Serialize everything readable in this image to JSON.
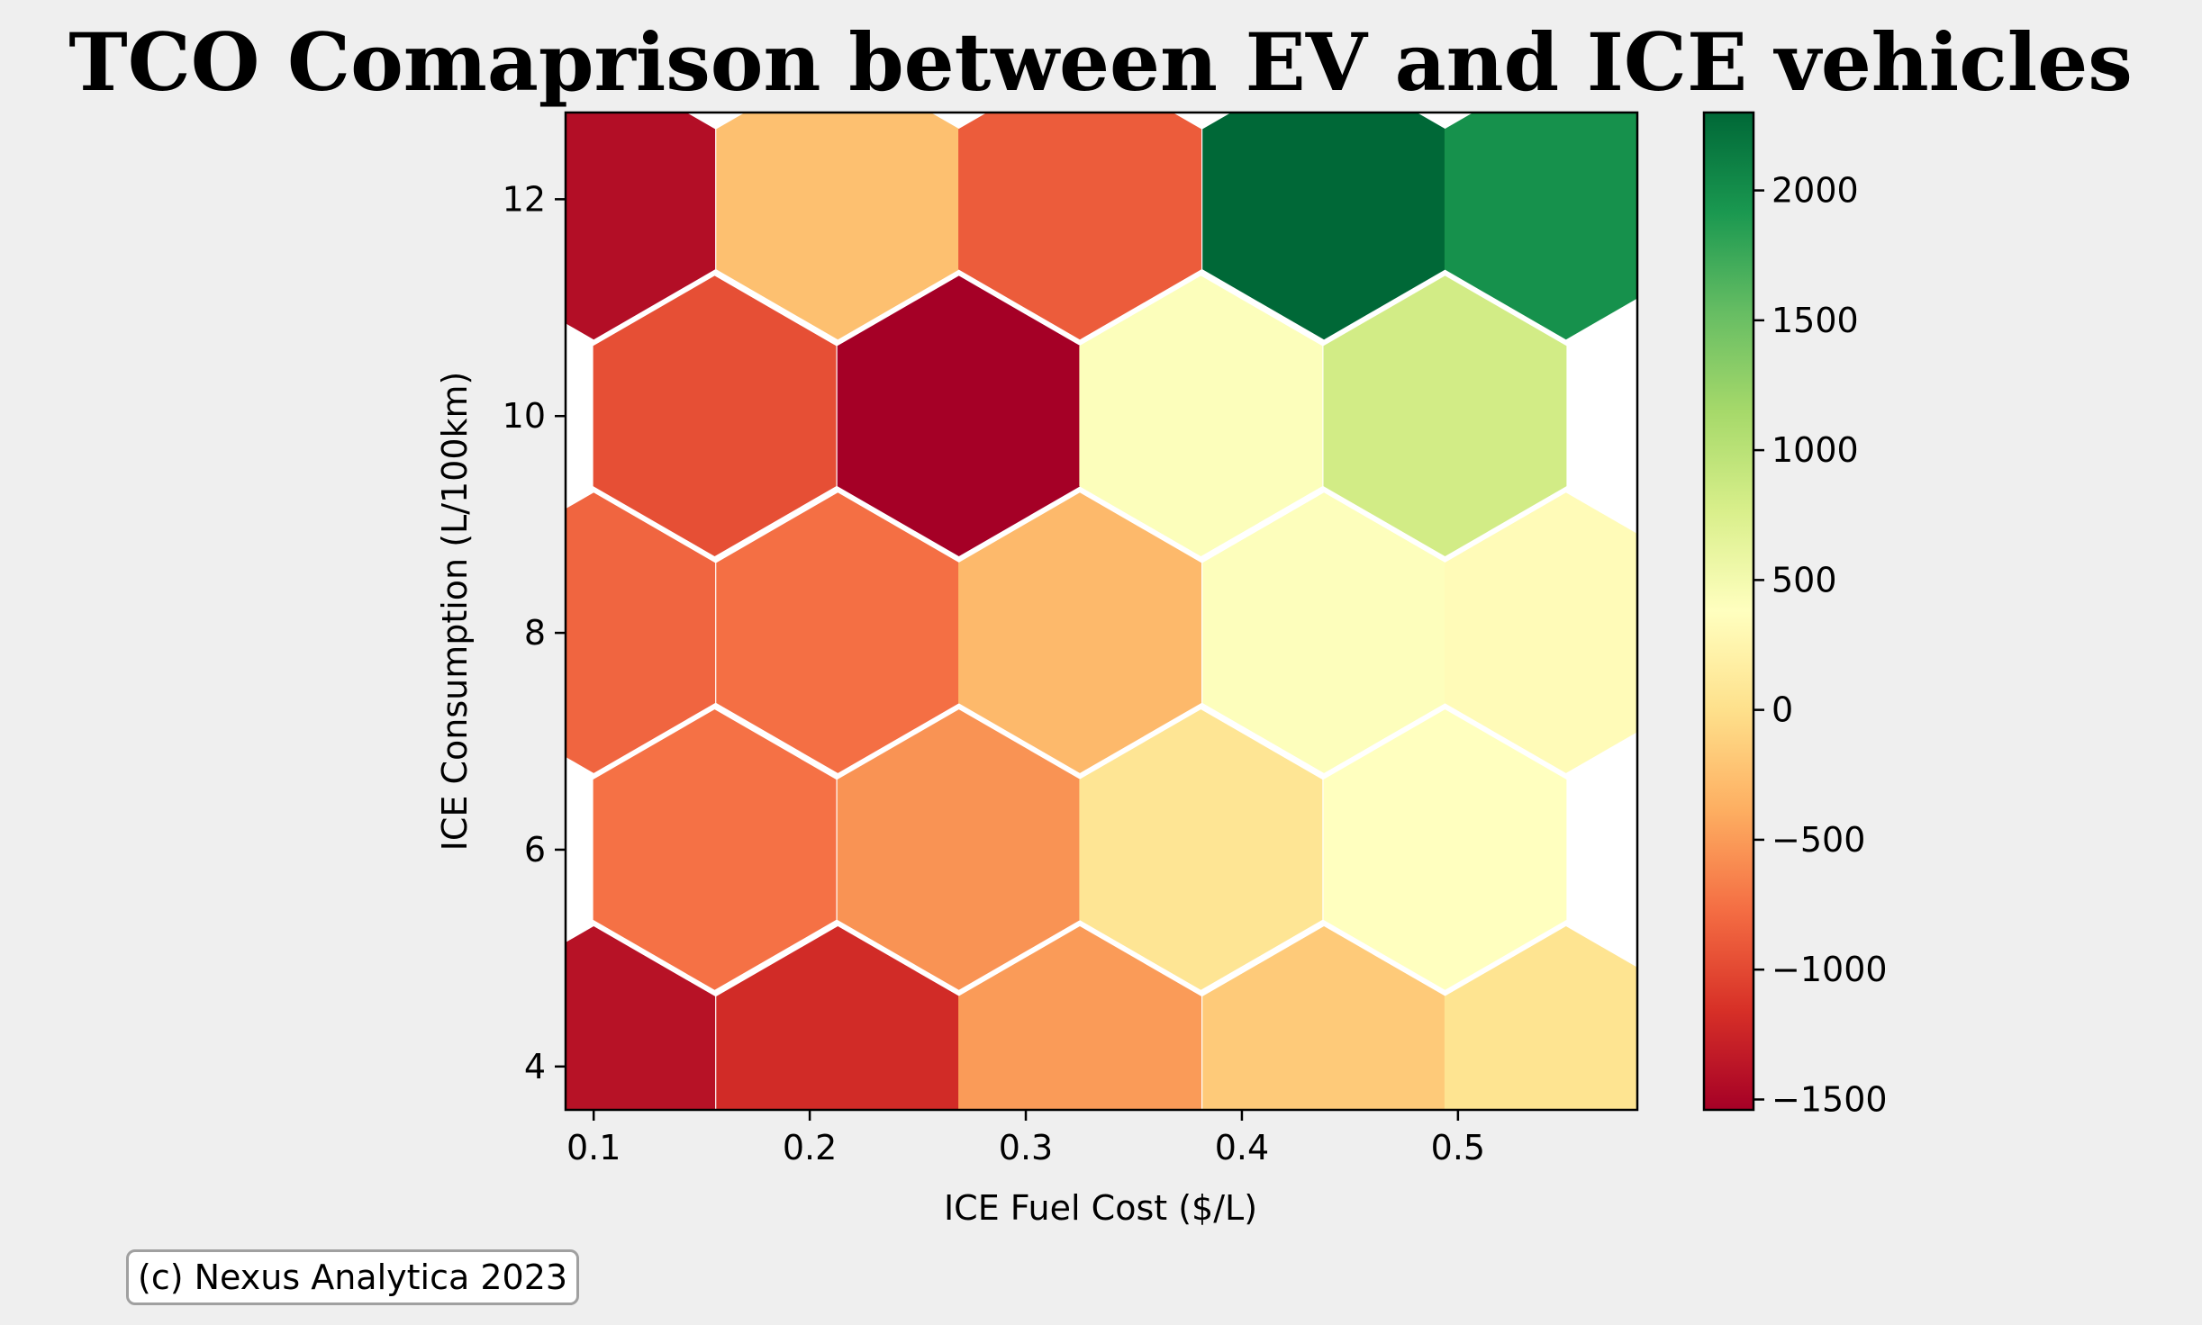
{
  "chart_data": {
    "type": "heatmap",
    "subtype": "hexbin",
    "title": "TCO Comaprison between EV and ICE vehicles",
    "xlabel": "ICE Fuel Cost ($/L)",
    "ylabel": "ICE Consumption (L/100km)",
    "xlim": [
      0.087,
      0.583
    ],
    "ylim": [
      3.6,
      12.8
    ],
    "xticks": [
      0.1,
      0.2,
      0.3,
      0.4,
      0.5
    ],
    "xtick_labels": [
      "0.1",
      "0.2",
      "0.3",
      "0.4",
      "0.5"
    ],
    "yticks": [
      4,
      6,
      8,
      10,
      12
    ],
    "ytick_labels": [
      "4",
      "6",
      "8",
      "10",
      "12"
    ],
    "colormap": "RdYlGn",
    "colorbar": {
      "min": -1540,
      "max": 2300,
      "ticks": [
        -1500,
        -1000,
        -500,
        0,
        500,
        1000,
        1500,
        2000
      ],
      "tick_labels": [
        "−1500",
        "−1000",
        "−500",
        "0",
        "500",
        "1000",
        "1500",
        "2000"
      ]
    },
    "hexagons": [
      {
        "x": 0.1,
        "y": 4.0,
        "value": -1400
      },
      {
        "x": 0.213,
        "y": 4.0,
        "value": -1200
      },
      {
        "x": 0.325,
        "y": 4.0,
        "value": -500
      },
      {
        "x": 0.438,
        "y": 4.0,
        "value": -170
      },
      {
        "x": 0.55,
        "y": 4.0,
        "value": 40
      },
      {
        "x": 0.156,
        "y": 6.0,
        "value": -750
      },
      {
        "x": 0.269,
        "y": 6.0,
        "value": -550
      },
      {
        "x": 0.381,
        "y": 6.0,
        "value": 60
      },
      {
        "x": 0.494,
        "y": 6.0,
        "value": 380
      },
      {
        "x": 0.1,
        "y": 8.0,
        "value": -820
      },
      {
        "x": 0.213,
        "y": 8.0,
        "value": -760
      },
      {
        "x": 0.325,
        "y": 8.0,
        "value": -300
      },
      {
        "x": 0.438,
        "y": 8.0,
        "value": 400
      },
      {
        "x": 0.55,
        "y": 8.0,
        "value": 330
      },
      {
        "x": 0.156,
        "y": 10.0,
        "value": -960
      },
      {
        "x": 0.269,
        "y": 10.0,
        "value": -1540
      },
      {
        "x": 0.381,
        "y": 10.0,
        "value": 410
      },
      {
        "x": 0.494,
        "y": 10.0,
        "value": 820
      },
      {
        "x": 0.1,
        "y": 12.0,
        "value": -1430
      },
      {
        "x": 0.213,
        "y": 12.0,
        "value": -250
      },
      {
        "x": 0.325,
        "y": 12.0,
        "value": -880
      },
      {
        "x": 0.438,
        "y": 12.0,
        "value": 2300
      },
      {
        "x": 0.55,
        "y": 12.0,
        "value": 1970
      }
    ]
  },
  "footer": {
    "copyright": "(c) Nexus Analytica 2023"
  },
  "colors": {
    "background": "#efefef",
    "plot_background": "#ffffff"
  }
}
